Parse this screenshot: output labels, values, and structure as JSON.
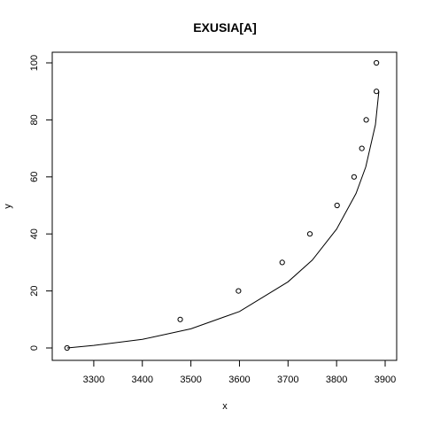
{
  "chart_data": {
    "type": "scatter",
    "title": "EXUSIA[A]",
    "xlabel": "x",
    "ylabel": "y",
    "xlim": [
      3240,
      3900
    ],
    "ylim": [
      0,
      100
    ],
    "xticks": [
      3300,
      3400,
      3500,
      3600,
      3700,
      3800,
      3900
    ],
    "yticks": [
      0,
      20,
      40,
      60,
      80,
      100
    ],
    "points": [
      {
        "x": 3245,
        "y": 0
      },
      {
        "x": 3478,
        "y": 10
      },
      {
        "x": 3598,
        "y": 20
      },
      {
        "x": 3688,
        "y": 30
      },
      {
        "x": 3745,
        "y": 40
      },
      {
        "x": 3801,
        "y": 50
      },
      {
        "x": 3836,
        "y": 60
      },
      {
        "x": 3852,
        "y": 70
      },
      {
        "x": 3861,
        "y": 80
      },
      {
        "x": 3882,
        "y": 90
      },
      {
        "x": 3882,
        "y": 100
      }
    ],
    "fitted_curve": [
      {
        "x": 3245,
        "y": 0
      },
      {
        "x": 3300,
        "y": 0.9
      },
      {
        "x": 3400,
        "y": 3
      },
      {
        "x": 3500,
        "y": 6.7
      },
      {
        "x": 3600,
        "y": 12.8
      },
      {
        "x": 3700,
        "y": 23.2
      },
      {
        "x": 3750,
        "y": 30.8
      },
      {
        "x": 3800,
        "y": 41.7
      },
      {
        "x": 3840,
        "y": 54.2
      },
      {
        "x": 3860,
        "y": 63.5
      },
      {
        "x": 3880,
        "y": 78.3
      },
      {
        "x": 3887,
        "y": 90
      }
    ],
    "grid": false
  }
}
